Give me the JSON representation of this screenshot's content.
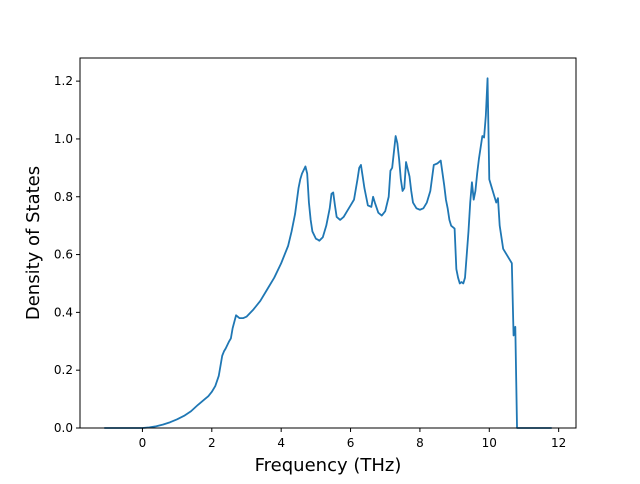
{
  "chart_data": {
    "type": "line",
    "title": "",
    "xlabel": "Frequency (THz)",
    "ylabel": "Density of States",
    "xlim": [
      -1.8,
      12.5
    ],
    "ylim": [
      0.0,
      1.28
    ],
    "xticks": [
      0,
      2,
      4,
      6,
      8,
      10,
      12
    ],
    "yticks": [
      0.0,
      0.2,
      0.4,
      0.6,
      0.8,
      1.0,
      1.2
    ],
    "xtick_labels": [
      "0",
      "2",
      "4",
      "6",
      "8",
      "10",
      "12"
    ],
    "ytick_labels": [
      "0.0",
      "0.2",
      "0.4",
      "0.6",
      "0.8",
      "1.0",
      "1.2"
    ],
    "grid": false,
    "legend": "none",
    "line_color": "#1f77b4",
    "series": [
      {
        "x": [
          -1.1,
          -0.5,
          0.0,
          0.2,
          0.4,
          0.6,
          0.8,
          1.0,
          1.2,
          1.4,
          1.6,
          1.8,
          1.9,
          2.0,
          2.1,
          2.2,
          2.3,
          2.35,
          2.4,
          2.5,
          2.55,
          2.6,
          2.7,
          2.8,
          2.9,
          3.0,
          3.2,
          3.4,
          3.6,
          3.8,
          4.0,
          4.2,
          4.3,
          4.4,
          4.5,
          4.55,
          4.6,
          4.7,
          4.75,
          4.8,
          4.85,
          4.9,
          5.0,
          5.05,
          5.1,
          5.2,
          5.3,
          5.4,
          5.45,
          5.5,
          5.55,
          5.6,
          5.7,
          5.8,
          5.9,
          6.0,
          6.1,
          6.2,
          6.25,
          6.3,
          6.35,
          6.4,
          6.45,
          6.5,
          6.6,
          6.65,
          6.7,
          6.8,
          6.9,
          7.0,
          7.1,
          7.15,
          7.2,
          7.3,
          7.35,
          7.4,
          7.45,
          7.5,
          7.55,
          7.6,
          7.7,
          7.75,
          7.8,
          7.9,
          8.0,
          8.1,
          8.2,
          8.3,
          8.4,
          8.5,
          8.6,
          8.7,
          8.75,
          8.8,
          8.85,
          8.9,
          9.0,
          9.05,
          9.1,
          9.15,
          9.2,
          9.25,
          9.3,
          9.4,
          9.45,
          9.5,
          9.55,
          9.6,
          9.65,
          9.7,
          9.8,
          9.85,
          9.9,
          9.95,
          10.0,
          10.05,
          10.1,
          10.15,
          10.2,
          10.25,
          10.3,
          10.4,
          10.5,
          10.6,
          10.65,
          10.7,
          10.75,
          10.8,
          11.0,
          11.5,
          11.8
        ],
        "y": [
          0.0,
          0.0,
          0.0,
          0.002,
          0.006,
          0.012,
          0.02,
          0.03,
          0.042,
          0.058,
          0.08,
          0.1,
          0.11,
          0.125,
          0.145,
          0.18,
          0.25,
          0.265,
          0.275,
          0.3,
          0.31,
          0.345,
          0.39,
          0.38,
          0.38,
          0.385,
          0.41,
          0.44,
          0.48,
          0.52,
          0.57,
          0.63,
          0.68,
          0.74,
          0.83,
          0.86,
          0.88,
          0.905,
          0.88,
          0.78,
          0.72,
          0.68,
          0.655,
          0.652,
          0.648,
          0.66,
          0.7,
          0.76,
          0.81,
          0.815,
          0.77,
          0.73,
          0.72,
          0.73,
          0.75,
          0.77,
          0.79,
          0.86,
          0.9,
          0.91,
          0.87,
          0.83,
          0.8,
          0.77,
          0.765,
          0.8,
          0.78,
          0.745,
          0.735,
          0.75,
          0.8,
          0.89,
          0.9,
          1.01,
          0.985,
          0.93,
          0.86,
          0.82,
          0.83,
          0.92,
          0.87,
          0.82,
          0.78,
          0.76,
          0.755,
          0.76,
          0.78,
          0.82,
          0.91,
          0.915,
          0.925,
          0.84,
          0.79,
          0.76,
          0.72,
          0.7,
          0.69,
          0.55,
          0.52,
          0.5,
          0.505,
          0.5,
          0.52,
          0.68,
          0.78,
          0.85,
          0.79,
          0.82,
          0.88,
          0.93,
          1.01,
          1.005,
          1.08,
          1.21,
          0.86,
          0.84,
          0.82,
          0.8,
          0.78,
          0.795,
          0.7,
          0.62,
          0.6,
          0.58,
          0.57,
          0.32,
          0.35,
          0.0,
          0.0,
          0.0,
          0.0
        ]
      }
    ]
  }
}
